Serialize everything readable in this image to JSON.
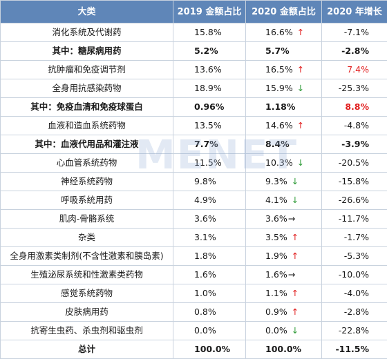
{
  "headers": [
    "大类",
    "2019 金额占比",
    "2020 金额占比",
    "2020 年增长"
  ],
  "watermark": "MENET",
  "colors": {
    "header_bg": "#5f86b8",
    "up_arrow": "#e11d1d",
    "down_arrow": "#2e9a37",
    "highlight_red": "#e11d1d",
    "border": "#c8d2de"
  },
  "rows": [
    {
      "category": "消化系统及代谢药",
      "share_2019": "15.8%",
      "share_2020": "16.6%",
      "arrow": "↑",
      "growth": "-7.1%"
    },
    {
      "category": "其中：糖尿病用药",
      "share_2019": "5.2%",
      "share_2020": "5.7%",
      "arrow": "",
      "growth": "-2.8%"
    },
    {
      "category": "抗肿瘤和免疫调节剂",
      "share_2019": "13.6%",
      "share_2020": "16.5%",
      "arrow": "↑",
      "growth": "7.4%"
    },
    {
      "category": "全身用抗感染药物",
      "share_2019": "18.9%",
      "share_2020": "15.9%",
      "arrow": "↓",
      "growth": "-25.3%"
    },
    {
      "category": "其中：免疫血清和免疫球蛋白",
      "share_2019": "0.96%",
      "share_2020": "1.18%",
      "arrow": "",
      "growth": "8.8%"
    },
    {
      "category": "血液和造血系统药物",
      "share_2019": "13.5%",
      "share_2020": "14.6%",
      "arrow": "↑",
      "growth": "-4.8%"
    },
    {
      "category": "其中：血液代用品和灌注液",
      "share_2019": "7.7%",
      "share_2020": "8.4%",
      "arrow": "",
      "growth": "-3.9%"
    },
    {
      "category": "心血管系统药物",
      "share_2019": "11.5%",
      "share_2020": "10.3%",
      "arrow": "↓",
      "growth": "-20.5%"
    },
    {
      "category": "神经系统药物",
      "share_2019": "9.8%",
      "share_2020": "9.3%",
      "arrow": "↓",
      "growth": "-15.8%"
    },
    {
      "category": "呼吸系统用药",
      "share_2019": "4.9%",
      "share_2020": "4.1%",
      "arrow": "↓",
      "growth": "-26.6%"
    },
    {
      "category": "肌肉-骨骼系统",
      "share_2019": "3.6%",
      "share_2020": "3.6%",
      "arrow": "→",
      "growth": "-11.7%"
    },
    {
      "category": "杂类",
      "share_2019": "3.1%",
      "share_2020": "3.5%",
      "arrow": "↑",
      "growth": "-1.7%"
    },
    {
      "category": "全身用激素类制剂(不含性激素和胰岛素)",
      "share_2019": "1.8%",
      "share_2020": "1.9%",
      "arrow": "↑",
      "growth": "-5.3%"
    },
    {
      "category": "生殖泌尿系统和性激素类药物",
      "share_2019": "1.6%",
      "share_2020": "1.6%",
      "arrow": "→",
      "growth": "-10.0%"
    },
    {
      "category": "感觉系统药物",
      "share_2019": "1.0%",
      "share_2020": "1.1%",
      "arrow": "↑",
      "growth": "-4.0%"
    },
    {
      "category": "皮肤病用药",
      "share_2019": "0.8%",
      "share_2020": "0.9%",
      "arrow": "↑",
      "growth": "-2.8%"
    },
    {
      "category": "抗寄生虫药、杀虫剂和驱虫剂",
      "share_2019": "0.0%",
      "share_2020": "0.0%",
      "arrow": "↓",
      "growth": "-22.8%"
    },
    {
      "category": "总计",
      "share_2019": "100.0%",
      "share_2020": "100.0%",
      "arrow": "",
      "growth": "-11.5%"
    }
  ]
}
